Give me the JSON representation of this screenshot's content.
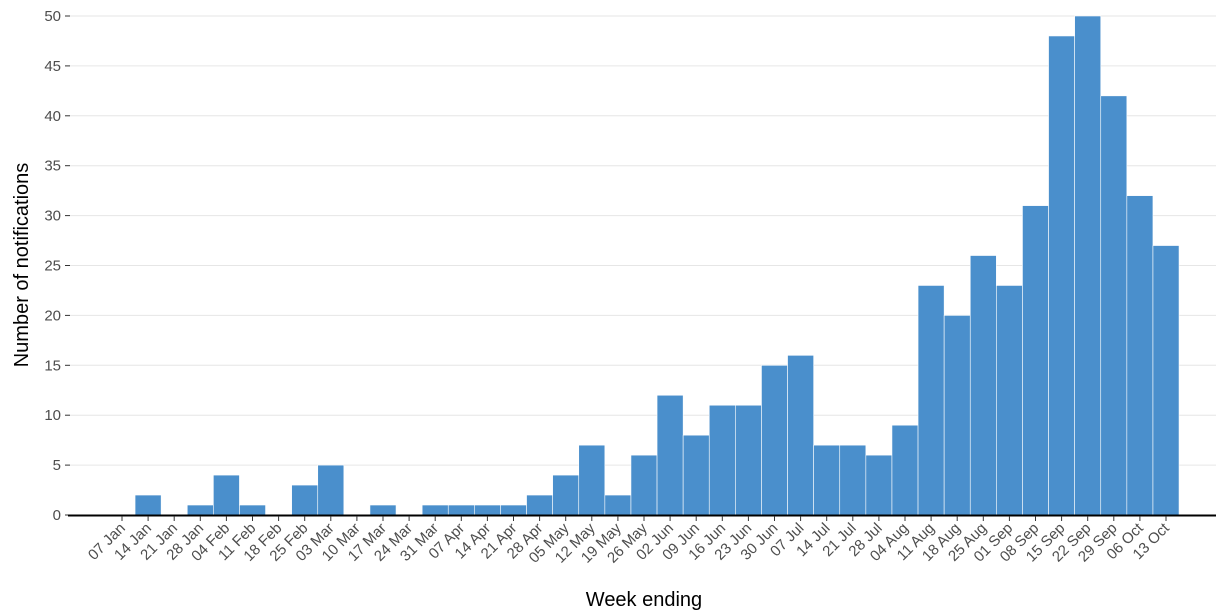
{
  "chart_data": {
    "type": "bar",
    "title": "",
    "xlabel": "Week ending",
    "ylabel": "Number of notifications",
    "ylim": [
      0,
      50
    ],
    "yticks": [
      0,
      5,
      10,
      15,
      20,
      25,
      30,
      35,
      40,
      45,
      50
    ],
    "grid": "horizontal",
    "bar_color": "#4a8fcc",
    "categories": [
      "07 Jan",
      "14 Jan",
      "21 Jan",
      "28 Jan",
      "04 Feb",
      "11 Feb",
      "18 Feb",
      "25 Feb",
      "03 Mar",
      "10 Mar",
      "17 Mar",
      "24 Mar",
      "31 Mar",
      "07 Apr",
      "14 Apr",
      "21 Apr",
      "28 Apr",
      "05 May",
      "12 May",
      "19 May",
      "26 May",
      "02 Jun",
      "09 Jun",
      "16 Jun",
      "23 Jun",
      "30 Jun",
      "07 Jul",
      "14 Jul",
      "21 Jul",
      "28 Jul",
      "04 Aug",
      "11 Aug",
      "18 Aug",
      "25 Aug",
      "01 Sep",
      "08 Sep",
      "15 Sep",
      "22 Sep",
      "29 Sep",
      "06 Oct",
      "13 Oct"
    ],
    "values": [
      0,
      2,
      0,
      1,
      4,
      1,
      0,
      3,
      5,
      0,
      1,
      0,
      1,
      1,
      1,
      1,
      2,
      4,
      7,
      2,
      6,
      12,
      8,
      11,
      11,
      15,
      16,
      7,
      7,
      6,
      9,
      23,
      20,
      26,
      23,
      31,
      48,
      50,
      42,
      32,
      27
    ]
  }
}
